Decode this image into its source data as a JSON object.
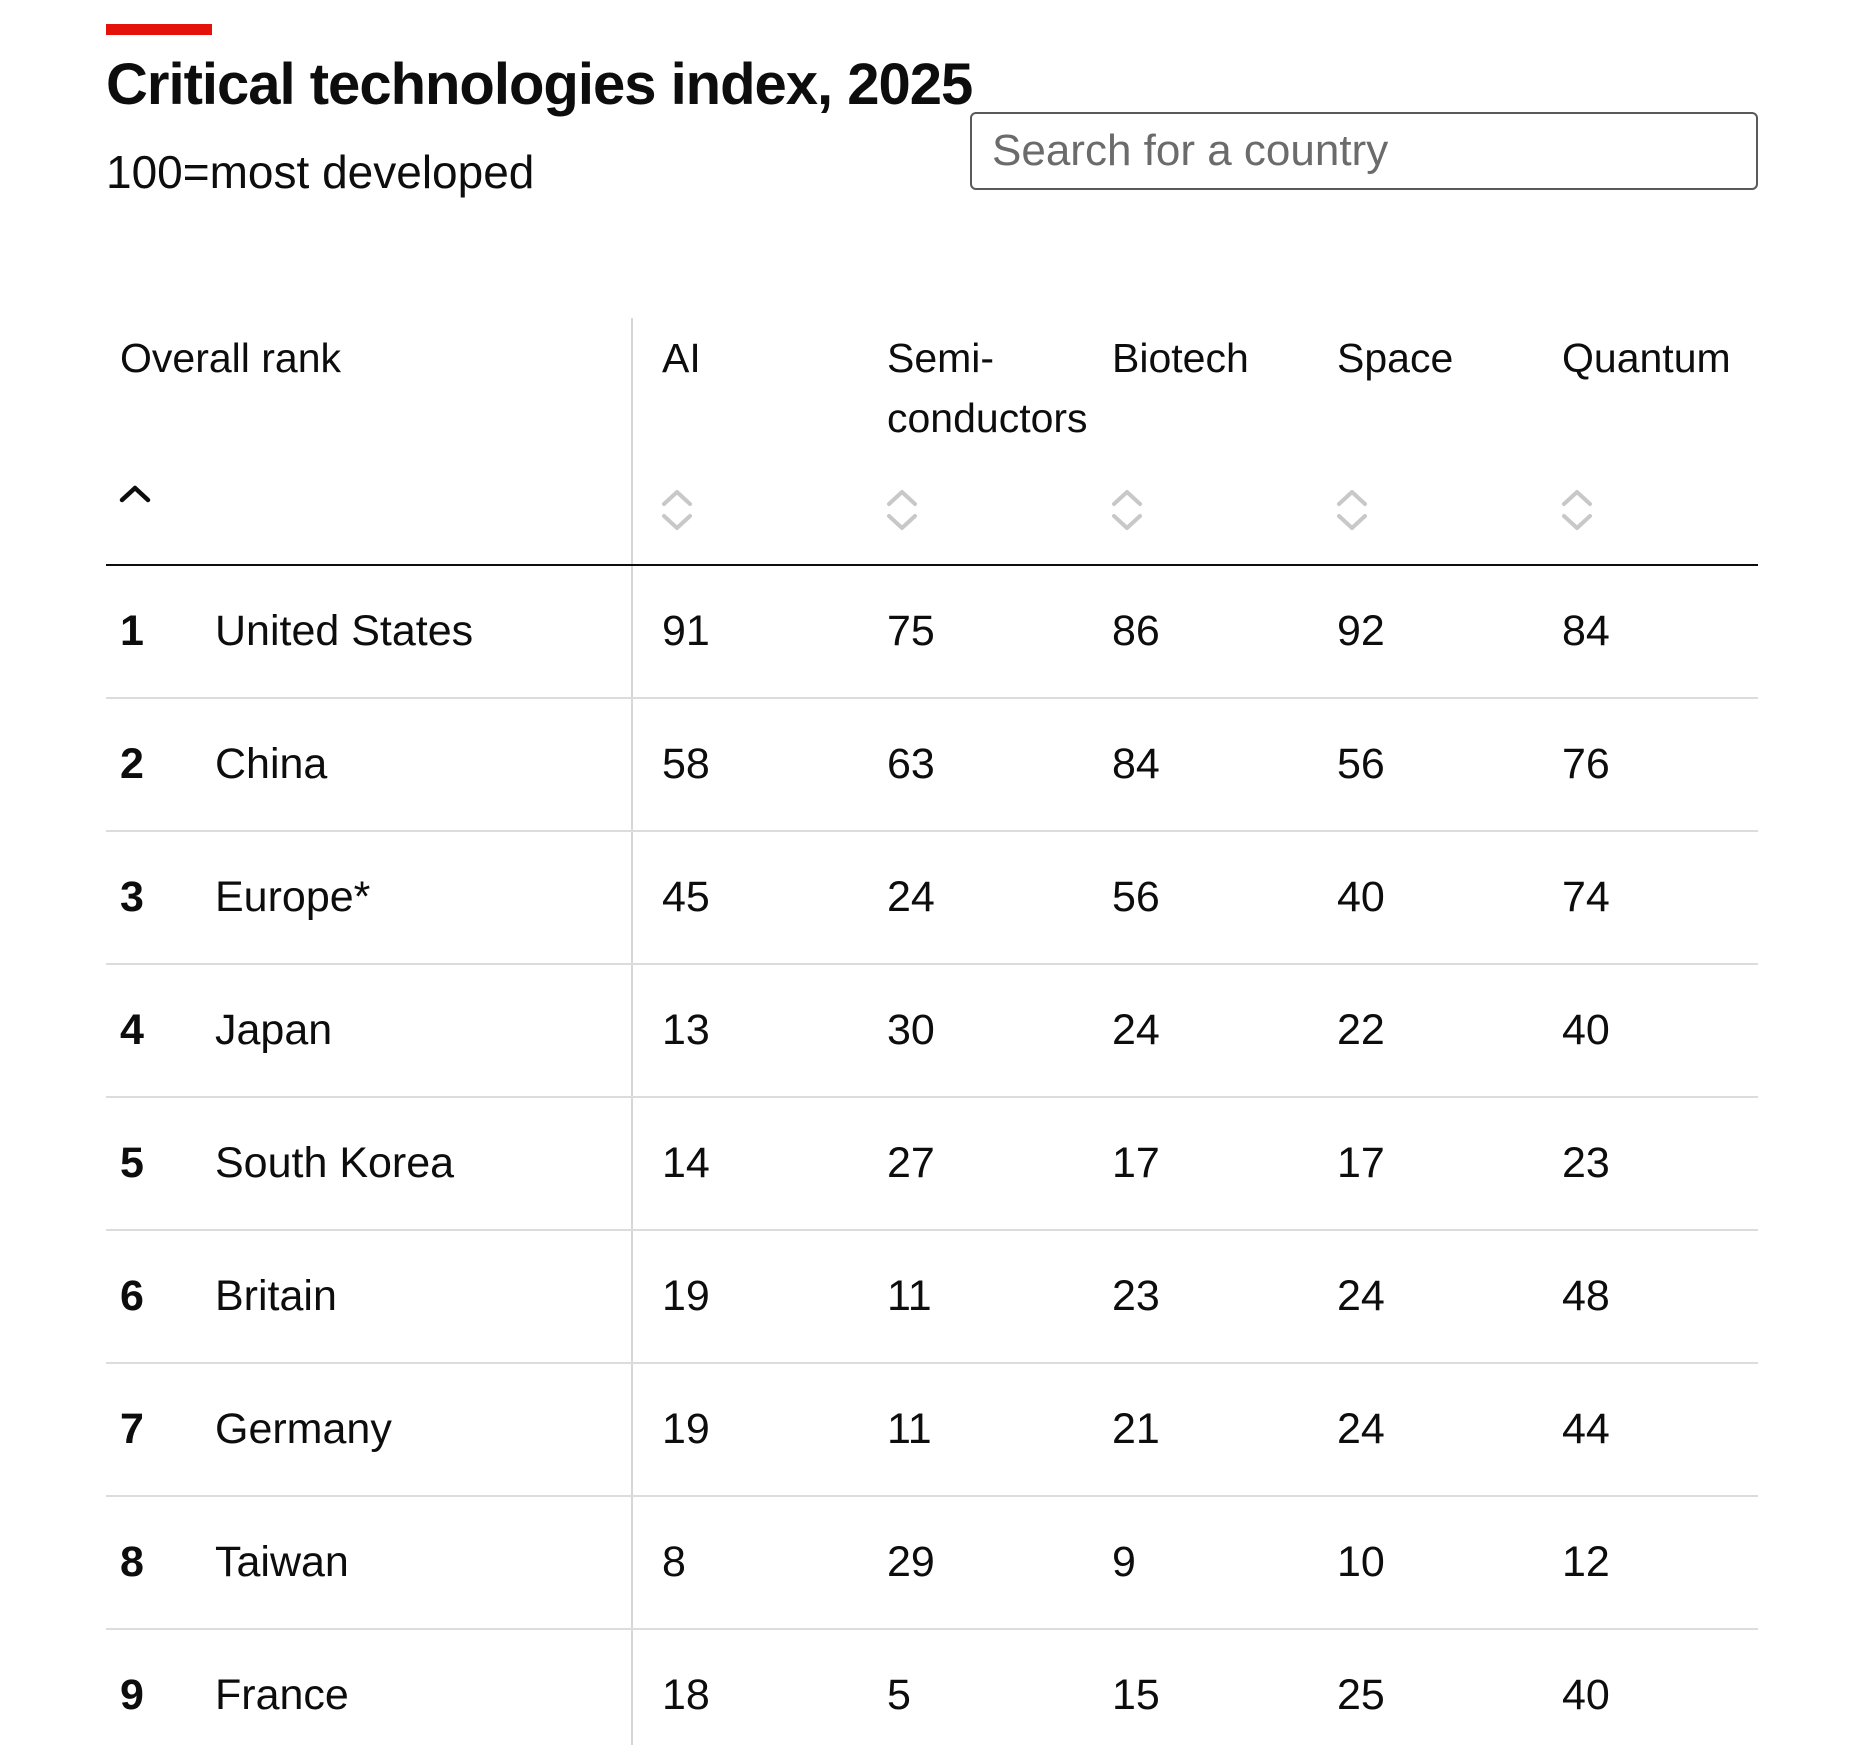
{
  "header": {
    "title": "Critical technologies index, 2025",
    "subtitle": "100=most developed"
  },
  "search": {
    "placeholder": "Search for a country"
  },
  "colors": {
    "accent": "#e3120b",
    "text": "#0d0d0d",
    "divider": "#d6d6d6",
    "sort_inactive": "#c8c8c8"
  },
  "chart_data": {
    "type": "table",
    "title": "Critical technologies index, 2025",
    "subtitle": "100=most developed",
    "sorted_by": "Overall rank",
    "sort_direction": "ascending",
    "columns": [
      {
        "key": "rank",
        "label": "Overall rank",
        "sort_icon": "chevron-up-icon",
        "active": true
      },
      {
        "key": "ai",
        "label": "AI",
        "sort_icon": "sort-icon",
        "active": false
      },
      {
        "key": "semi",
        "label": "Semi-\nconductors",
        "sort_icon": "sort-icon",
        "active": false
      },
      {
        "key": "biotech",
        "label": "Biotech",
        "sort_icon": "sort-icon",
        "active": false
      },
      {
        "key": "space",
        "label": "Space",
        "sort_icon": "sort-icon",
        "active": false
      },
      {
        "key": "quantum",
        "label": "Quantum",
        "sort_icon": "sort-icon",
        "active": false
      }
    ],
    "rows": [
      {
        "rank": "1",
        "country": "United States",
        "ai": "91",
        "semi": "75",
        "biotech": "86",
        "space": "92",
        "quantum": "84"
      },
      {
        "rank": "2",
        "country": "China",
        "ai": "58",
        "semi": "63",
        "biotech": "84",
        "space": "56",
        "quantum": "76"
      },
      {
        "rank": "3",
        "country": "Europe*",
        "ai": "45",
        "semi": "24",
        "biotech": "56",
        "space": "40",
        "quantum": "74"
      },
      {
        "rank": "4",
        "country": "Japan",
        "ai": "13",
        "semi": "30",
        "biotech": "24",
        "space": "22",
        "quantum": "40"
      },
      {
        "rank": "5",
        "country": "South Korea",
        "ai": "14",
        "semi": "27",
        "biotech": "17",
        "space": "17",
        "quantum": "23"
      },
      {
        "rank": "6",
        "country": "Britain",
        "ai": "19",
        "semi": "11",
        "biotech": "23",
        "space": "24",
        "quantum": "48"
      },
      {
        "rank": "7",
        "country": "Germany",
        "ai": "19",
        "semi": "11",
        "biotech": "21",
        "space": "24",
        "quantum": "44"
      },
      {
        "rank": "8",
        "country": "Taiwan",
        "ai": "8",
        "semi": "29",
        "biotech": "9",
        "space": "10",
        "quantum": "12"
      },
      {
        "rank": "9",
        "country": "France",
        "ai": "18",
        "semi": "5",
        "biotech": "15",
        "space": "25",
        "quantum": "40"
      }
    ]
  }
}
